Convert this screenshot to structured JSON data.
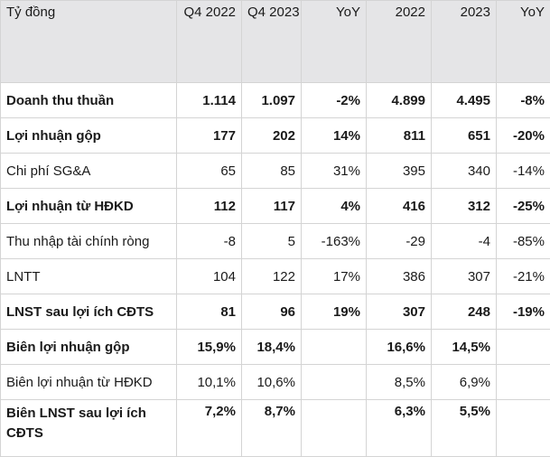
{
  "table": {
    "headers": [
      "Tỷ đồng",
      "Q4 2022",
      "Q4 2023",
      "YoY",
      "2022",
      "2023",
      "YoY"
    ],
    "rows": [
      {
        "label": "Doanh thu thuần",
        "values": [
          "1.114",
          "1.097",
          "-2%",
          "4.899",
          "4.495",
          "-8%"
        ],
        "bold": true
      },
      {
        "label": "Lợi nhuận gộp",
        "values": [
          "177",
          "202",
          "14%",
          "811",
          "651",
          "-20%"
        ],
        "bold": true
      },
      {
        "label": "Chi phí SG&A",
        "values": [
          "65",
          "85",
          "31%",
          "395",
          "340",
          "-14%"
        ],
        "bold": false
      },
      {
        "label": "Lợi nhuận từ HĐKD",
        "values": [
          "112",
          "117",
          "4%",
          "416",
          "312",
          "-25%"
        ],
        "bold": true
      },
      {
        "label": "Thu nhập tài chính ròng",
        "values": [
          "-8",
          "5",
          "-163%",
          "-29",
          "-4",
          "-85%"
        ],
        "bold": false
      },
      {
        "label": "LNTT",
        "values": [
          "104",
          "122",
          "17%",
          "386",
          "307",
          "-21%"
        ],
        "bold": false
      },
      {
        "label": "LNST sau lợi ích CĐTS",
        "values": [
          "81",
          "96",
          "19%",
          "307",
          "248",
          "-19%"
        ],
        "bold": true
      },
      {
        "label": "Biên lợi nhuận gộp",
        "values": [
          "15,9%",
          "18,4%",
          "",
          "16,6%",
          "14,5%",
          ""
        ],
        "bold": true
      },
      {
        "label": "Biên lợi nhuận từ HĐKD",
        "values": [
          "10,1%",
          "10,6%",
          "",
          "8,5%",
          "6,9%",
          ""
        ],
        "bold": false
      },
      {
        "label": "Biên LNST sau lợi ích CĐTS",
        "values": [
          "7,2%",
          "8,7%",
          "",
          "6,3%",
          "5,5%",
          ""
        ],
        "bold": true
      }
    ]
  }
}
